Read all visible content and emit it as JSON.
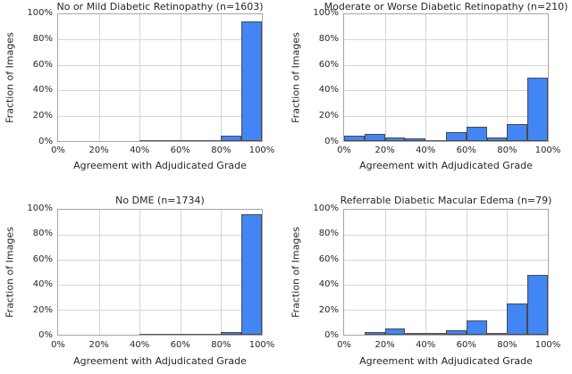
{
  "figure": {
    "background": "#ffffff",
    "bar_fill_color": "#4285f4",
    "bar_edge_color": "#4a4a4a",
    "grid_color": "#d6d6d6",
    "spine_color": "#a6a6a6",
    "text_color": "#262626",
    "shared_xlabel": "Agreement with Adjudicated Grade",
    "shared_ylabel": "Fraction of Images",
    "x_tick_labels": [
      "0%",
      "20%",
      "40%",
      "60%",
      "80%",
      "100%"
    ],
    "y_tick_labels": [
      "0%",
      "20%",
      "40%",
      "60%",
      "80%",
      "100%"
    ]
  },
  "chart_data": [
    {
      "type": "bar",
      "title": "No or Mild Diabetic Retinopathy (n=1603)",
      "xlabel": "Agreement with Adjudicated Grade",
      "ylabel": "Fraction of Images",
      "xlim": [
        0,
        100
      ],
      "ylim": [
        0,
        100
      ],
      "grid": true,
      "legend": "none",
      "bin_width_percent": 10,
      "categories": [
        "0-10%",
        "10-20%",
        "20-30%",
        "30-40%",
        "40-50%",
        "50-60%",
        "60-70%",
        "70-80%",
        "80-90%",
        "90-100%"
      ],
      "values": [
        0,
        0,
        0,
        0,
        0.1,
        0.2,
        0.9,
        0.3,
        4.0,
        94.5
      ]
    },
    {
      "type": "bar",
      "title": "Moderate or Worse Diabetic Retinopathy (n=210)",
      "xlabel": "Agreement with Adjudicated Grade",
      "ylabel": "Fraction of Images",
      "xlim": [
        0,
        100
      ],
      "ylim": [
        0,
        100
      ],
      "grid": true,
      "legend": "none",
      "bin_width_percent": 10,
      "categories": [
        "0-10%",
        "10-20%",
        "20-30%",
        "30-40%",
        "40-50%",
        "50-60%",
        "60-70%",
        "70-80%",
        "80-90%",
        "90-100%"
      ],
      "values": [
        4.3,
        5.7,
        2.9,
        1.9,
        0.5,
        7.1,
        11.4,
        2.9,
        13.3,
        50.0
      ]
    },
    {
      "type": "bar",
      "title": "No DME (n=1734)",
      "xlabel": "Agreement with Adjudicated Grade",
      "ylabel": "Fraction of Images",
      "xlim": [
        0,
        100
      ],
      "ylim": [
        0,
        100
      ],
      "grid": true,
      "legend": "none",
      "bin_width_percent": 10,
      "categories": [
        "0-10%",
        "10-20%",
        "20-30%",
        "30-40%",
        "40-50%",
        "50-60%",
        "60-70%",
        "70-80%",
        "80-90%",
        "90-100%"
      ],
      "values": [
        0,
        0,
        0,
        0,
        0.1,
        0.6,
        0.6,
        0.2,
        1.8,
        96.5
      ]
    },
    {
      "type": "bar",
      "title": "Referrable Diabetic Macular Edema (n=79)",
      "xlabel": "Agreement with Adjudicated Grade",
      "ylabel": "Fraction of Images",
      "xlim": [
        0,
        100
      ],
      "ylim": [
        0,
        100
      ],
      "grid": true,
      "legend": "none",
      "bin_width_percent": 10,
      "categories": [
        "0-10%",
        "10-20%",
        "20-30%",
        "30-40%",
        "40-50%",
        "50-60%",
        "60-70%",
        "70-80%",
        "80-90%",
        "90-100%"
      ],
      "values": [
        0,
        2.5,
        5.1,
        1.3,
        1.3,
        3.8,
        11.4,
        1.3,
        25.3,
        48.1
      ]
    }
  ]
}
